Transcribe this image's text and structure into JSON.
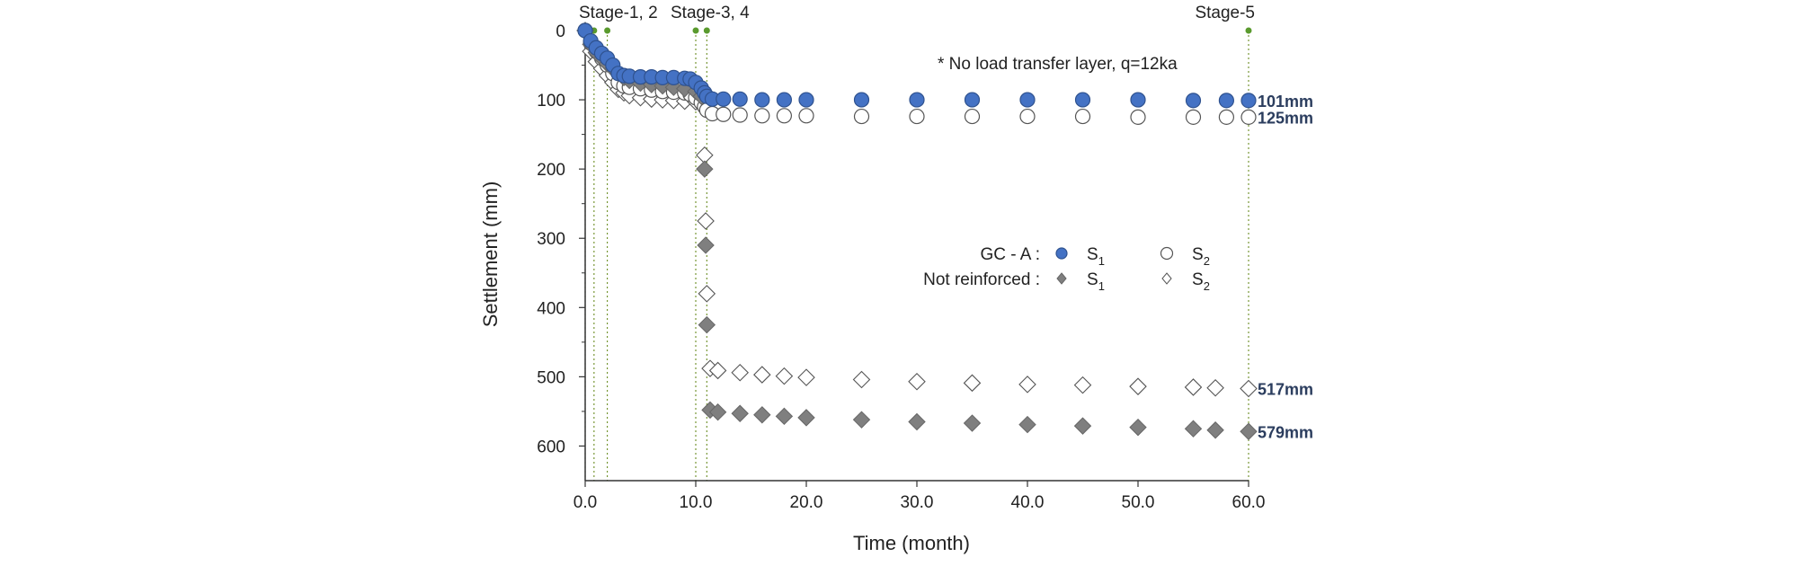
{
  "chart_data": {
    "type": "scatter",
    "xlabel": "Time (month)",
    "ylabel": "Settlement (mm)",
    "xlim": [
      0,
      60
    ],
    "ylim": [
      650,
      0
    ],
    "y_axis_inverted": true,
    "x_ticks": [
      0,
      10,
      20,
      30,
      40,
      50,
      60
    ],
    "x_tick_labels": [
      "0.0",
      "10.0",
      "20.0",
      "30.0",
      "40.0",
      "50.0",
      "60.0"
    ],
    "y_ticks": [
      0,
      100,
      200,
      300,
      400,
      500,
      600
    ],
    "y_tick_labels": [
      "0",
      "100",
      "200",
      "300",
      "400",
      "500",
      "600"
    ],
    "grid": false,
    "legend_position": "center-right",
    "note": "* No  load transfer layer,  q=12ka",
    "legend": {
      "gc_label": "GC - A :",
      "nr_label": "Not  reinforced :",
      "s_text": "S",
      "sub1": "1",
      "sub2": "2"
    },
    "stages": [
      {
        "x": 0.0,
        "label": ""
      },
      {
        "x": 0.8,
        "label": "Stage-1, 2"
      },
      {
        "x": 2.0,
        "label": ""
      },
      {
        "x": 10.0,
        "label": "Stage-3, 4"
      },
      {
        "x": 11.0,
        "label": ""
      },
      {
        "x": 60.0,
        "label": "Stage-5"
      }
    ],
    "end_labels": [
      {
        "y": 101,
        "text": "101mm"
      },
      {
        "y": 125,
        "text": "125mm"
      },
      {
        "y": 517,
        "text": "517mm"
      },
      {
        "y": 579,
        "text": "579mm"
      }
    ],
    "series": [
      {
        "name": "GC - A : S1",
        "marker": "circle-filled",
        "color": "#4472c4",
        "points": [
          [
            0.0,
            0
          ],
          [
            0.5,
            15
          ],
          [
            1.0,
            25
          ],
          [
            1.5,
            33
          ],
          [
            2.0,
            40
          ],
          [
            2.5,
            50
          ],
          [
            3.0,
            62
          ],
          [
            3.5,
            65
          ],
          [
            4.0,
            66
          ],
          [
            5.0,
            67
          ],
          [
            6.0,
            67
          ],
          [
            7.0,
            68
          ],
          [
            8.0,
            68
          ],
          [
            9.0,
            69
          ],
          [
            9.5,
            70
          ],
          [
            10.0,
            75
          ],
          [
            10.5,
            83
          ],
          [
            10.8,
            90
          ],
          [
            11.0,
            95
          ],
          [
            11.5,
            99
          ],
          [
            12.5,
            99
          ],
          [
            14.0,
            99
          ],
          [
            16.0,
            100
          ],
          [
            18.0,
            100
          ],
          [
            20.0,
            100
          ],
          [
            25.0,
            100
          ],
          [
            30.0,
            100
          ],
          [
            35.0,
            100
          ],
          [
            40.0,
            100
          ],
          [
            45.0,
            100
          ],
          [
            50.0,
            100
          ],
          [
            55.0,
            101
          ],
          [
            58.0,
            101
          ],
          [
            60.0,
            101
          ]
        ]
      },
      {
        "name": "GC - A : S2",
        "marker": "circle-open",
        "color": "#ffffff",
        "points": [
          [
            0.0,
            0
          ],
          [
            0.5,
            18
          ],
          [
            1.0,
            30
          ],
          [
            1.5,
            40
          ],
          [
            2.0,
            50
          ],
          [
            2.5,
            62
          ],
          [
            3.0,
            75
          ],
          [
            3.5,
            80
          ],
          [
            4.0,
            82
          ],
          [
            5.0,
            84
          ],
          [
            6.0,
            86
          ],
          [
            7.0,
            88
          ],
          [
            8.0,
            89
          ],
          [
            9.0,
            90
          ],
          [
            9.5,
            92
          ],
          [
            10.0,
            97
          ],
          [
            10.5,
            104
          ],
          [
            10.8,
            110
          ],
          [
            11.0,
            115
          ],
          [
            11.5,
            120
          ],
          [
            12.5,
            121
          ],
          [
            14.0,
            122
          ],
          [
            16.0,
            123
          ],
          [
            18.0,
            123
          ],
          [
            20.0,
            123
          ],
          [
            25.0,
            124
          ],
          [
            30.0,
            124
          ],
          [
            35.0,
            124
          ],
          [
            40.0,
            124
          ],
          [
            45.0,
            124
          ],
          [
            50.0,
            125
          ],
          [
            55.0,
            125
          ],
          [
            58.0,
            125
          ],
          [
            60.0,
            125
          ]
        ]
      },
      {
        "name": "Not reinforced : S1",
        "marker": "diamond-filled",
        "color": "#7f7f7f",
        "points": [
          [
            0.0,
            0
          ],
          [
            0.5,
            20
          ],
          [
            1.0,
            32
          ],
          [
            1.5,
            40
          ],
          [
            2.0,
            48
          ],
          [
            2.5,
            55
          ],
          [
            3.0,
            62
          ],
          [
            3.5,
            68
          ],
          [
            4.0,
            72
          ],
          [
            5.0,
            76
          ],
          [
            6.0,
            78
          ],
          [
            7.0,
            80
          ],
          [
            8.0,
            82
          ],
          [
            9.0,
            84
          ],
          [
            10.0,
            88
          ],
          [
            10.5,
            95
          ],
          [
            10.8,
            200
          ],
          [
            10.9,
            310
          ],
          [
            11.0,
            425
          ],
          [
            11.3,
            548
          ],
          [
            12.0,
            551
          ],
          [
            14.0,
            553
          ],
          [
            16.0,
            555
          ],
          [
            18.0,
            557
          ],
          [
            20.0,
            559
          ],
          [
            25.0,
            562
          ],
          [
            30.0,
            565
          ],
          [
            35.0,
            567
          ],
          [
            40.0,
            569
          ],
          [
            45.0,
            571
          ],
          [
            50.0,
            573
          ],
          [
            55.0,
            575
          ],
          [
            57.0,
            577
          ],
          [
            60.0,
            579
          ]
        ]
      },
      {
        "name": "Not reinforced : S2",
        "marker": "diamond-open",
        "color": "#ffffff",
        "points": [
          [
            0.0,
            0
          ],
          [
            0.5,
            30
          ],
          [
            1.0,
            45
          ],
          [
            1.5,
            55
          ],
          [
            2.0,
            65
          ],
          [
            2.5,
            75
          ],
          [
            3.0,
            85
          ],
          [
            3.5,
            90
          ],
          [
            4.0,
            94
          ],
          [
            5.0,
            97
          ],
          [
            6.0,
            99
          ],
          [
            7.0,
            100
          ],
          [
            8.0,
            101
          ],
          [
            9.0,
            102
          ],
          [
            10.0,
            103
          ],
          [
            10.5,
            105
          ],
          [
            10.8,
            180
          ],
          [
            10.9,
            275
          ],
          [
            11.0,
            380
          ],
          [
            11.3,
            488
          ],
          [
            12.0,
            491
          ],
          [
            14.0,
            494
          ],
          [
            16.0,
            497
          ],
          [
            18.0,
            499
          ],
          [
            20.0,
            501
          ],
          [
            25.0,
            504
          ],
          [
            30.0,
            507
          ],
          [
            35.0,
            509
          ],
          [
            40.0,
            511
          ],
          [
            45.0,
            512
          ],
          [
            50.0,
            514
          ],
          [
            55.0,
            515
          ],
          [
            57.0,
            516
          ],
          [
            60.0,
            517
          ]
        ]
      }
    ]
  }
}
